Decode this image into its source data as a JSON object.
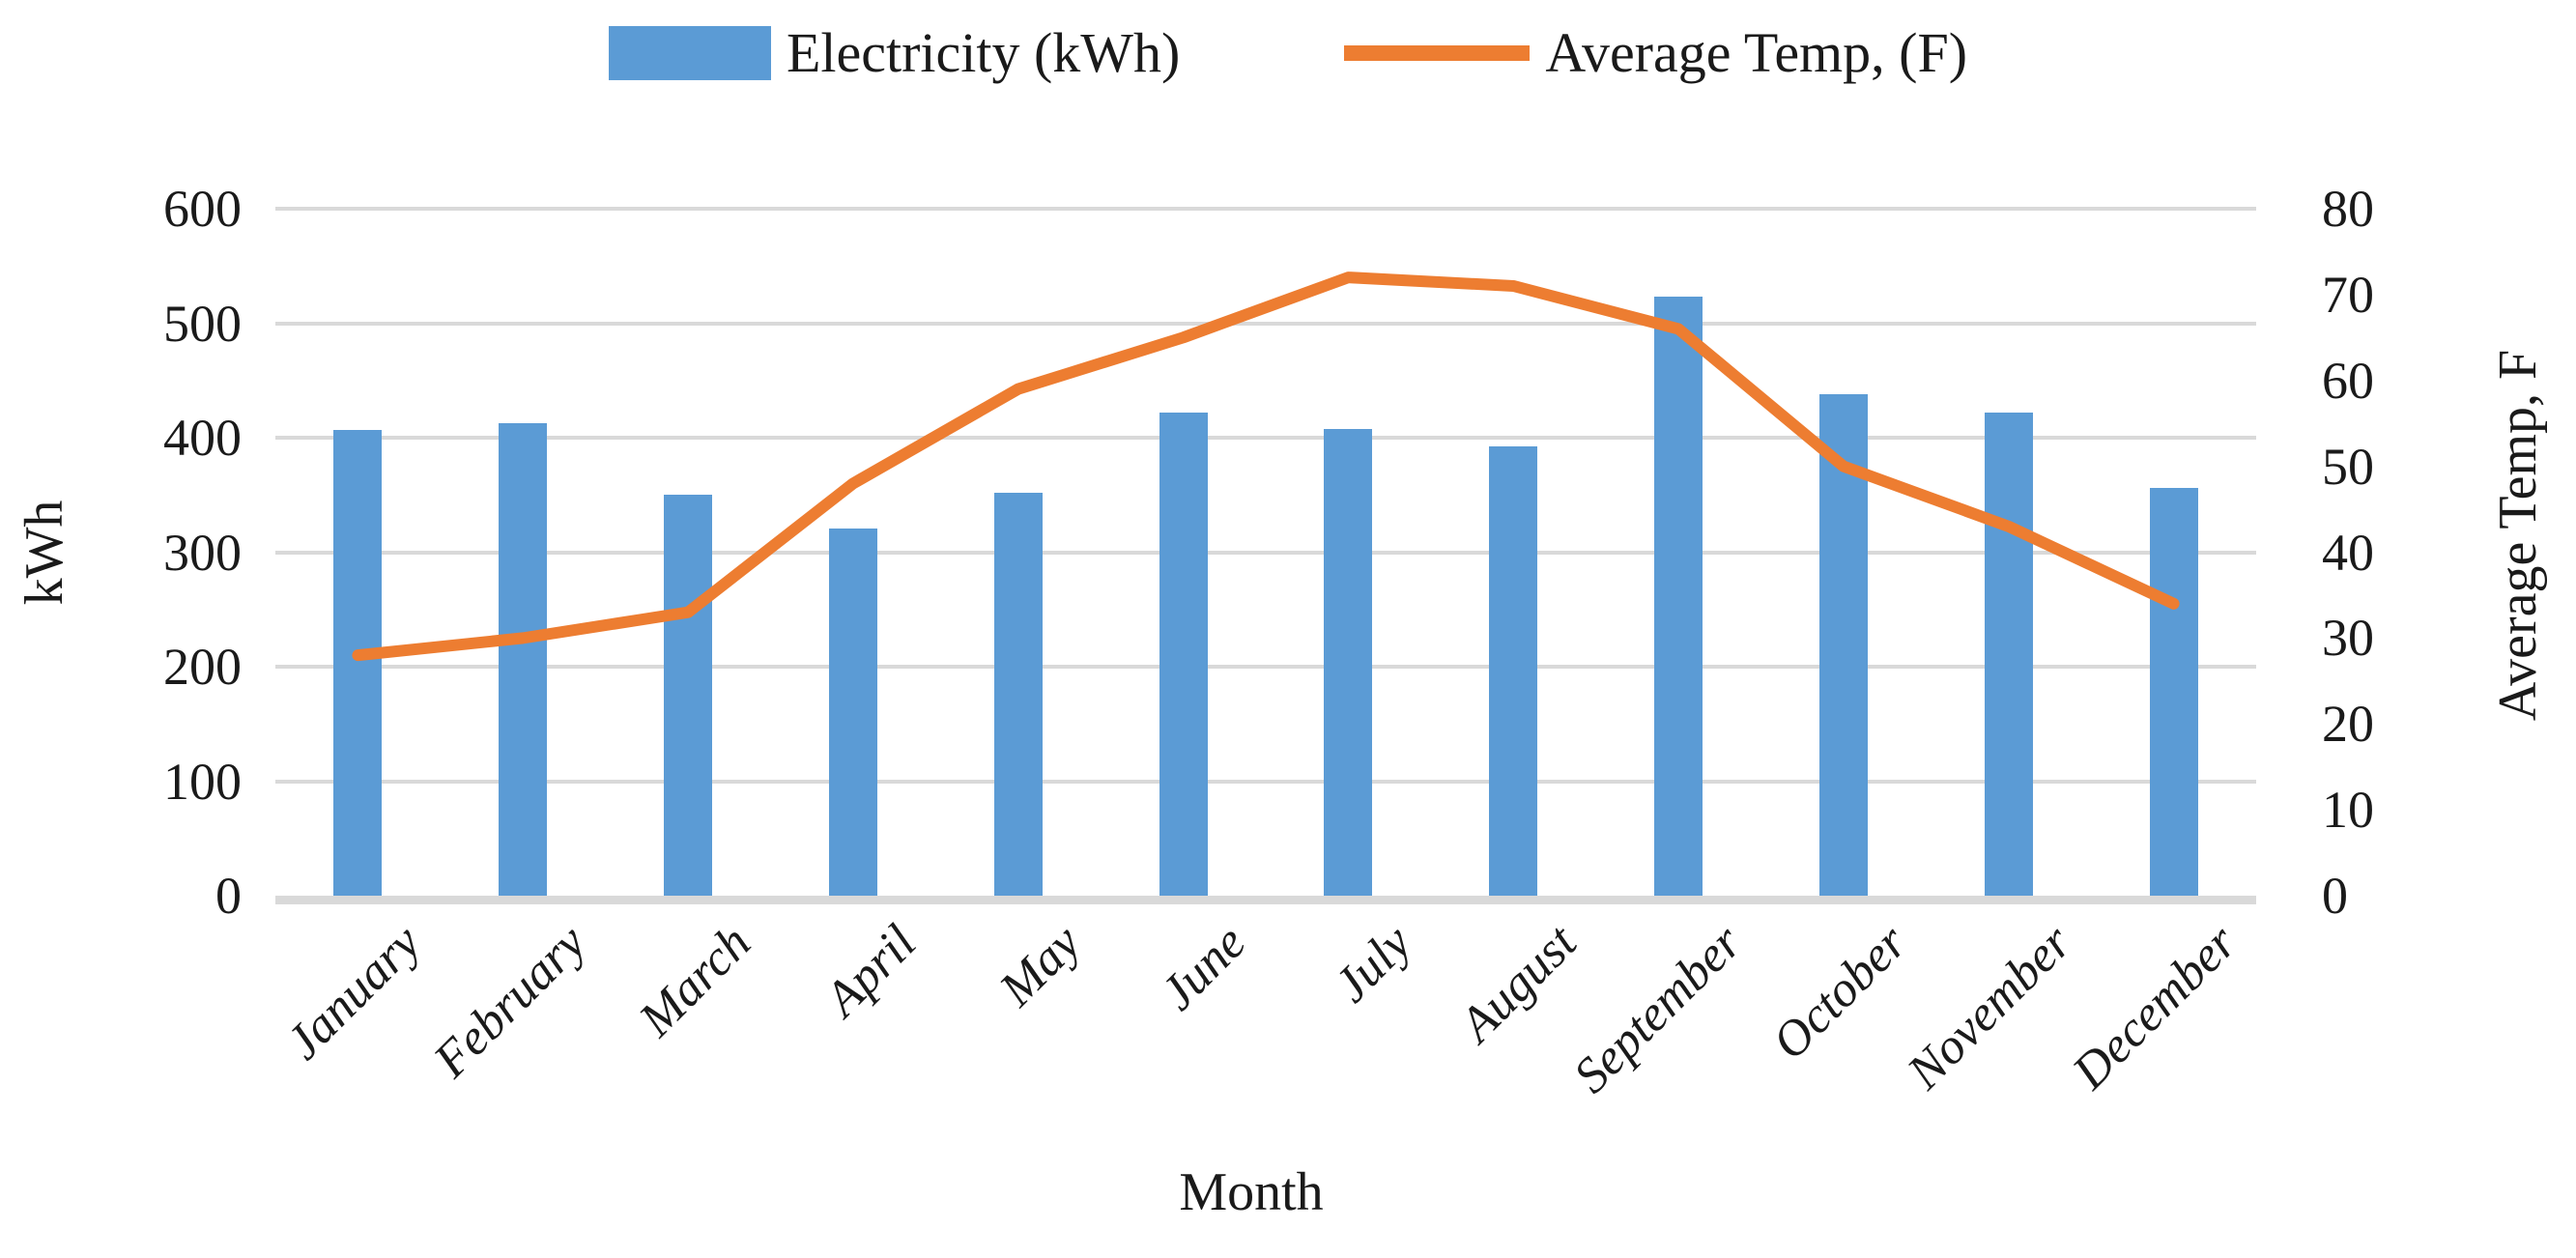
{
  "figure": {
    "background": "#ffffff",
    "text_color": "#1a1a1a"
  },
  "legend": {
    "items": [
      {
        "label": "Electricity (kWh)",
        "marker": "bar",
        "color": "#5B9BD5"
      },
      {
        "label": "Average Temp, (F)",
        "marker": "line",
        "color": "#ED7D31"
      }
    ]
  },
  "chart_data": {
    "type": "bar+line combo",
    "categories": [
      "January",
      "February",
      "March",
      "April",
      "May",
      "June",
      "July",
      "August",
      "September",
      "October",
      "November",
      "December"
    ],
    "series": [
      {
        "name": "Electricity (kWh)",
        "type": "bar",
        "axis": "left",
        "color": "#5B9BD5",
        "values": [
          407,
          413,
          350,
          321,
          352,
          422,
          408,
          392,
          523,
          438,
          422,
          356
        ]
      },
      {
        "name": "Average Temp, (F)",
        "type": "line",
        "axis": "right",
        "color": "#ED7D31",
        "values": [
          28,
          30,
          33,
          48,
          59,
          65,
          72,
          71,
          66,
          50,
          43,
          34
        ]
      }
    ],
    "left_axis": {
      "title": "kWh",
      "min": 0,
      "max": 600,
      "step": 100
    },
    "right_axis": {
      "title": "Average Temp, F",
      "min": 0,
      "max": 80,
      "step": 10
    },
    "x_axis": {
      "title": "Month"
    },
    "grid": {
      "color": "#D9D9D9",
      "horizontal": true,
      "vertical": false
    },
    "legend_position": "top"
  }
}
